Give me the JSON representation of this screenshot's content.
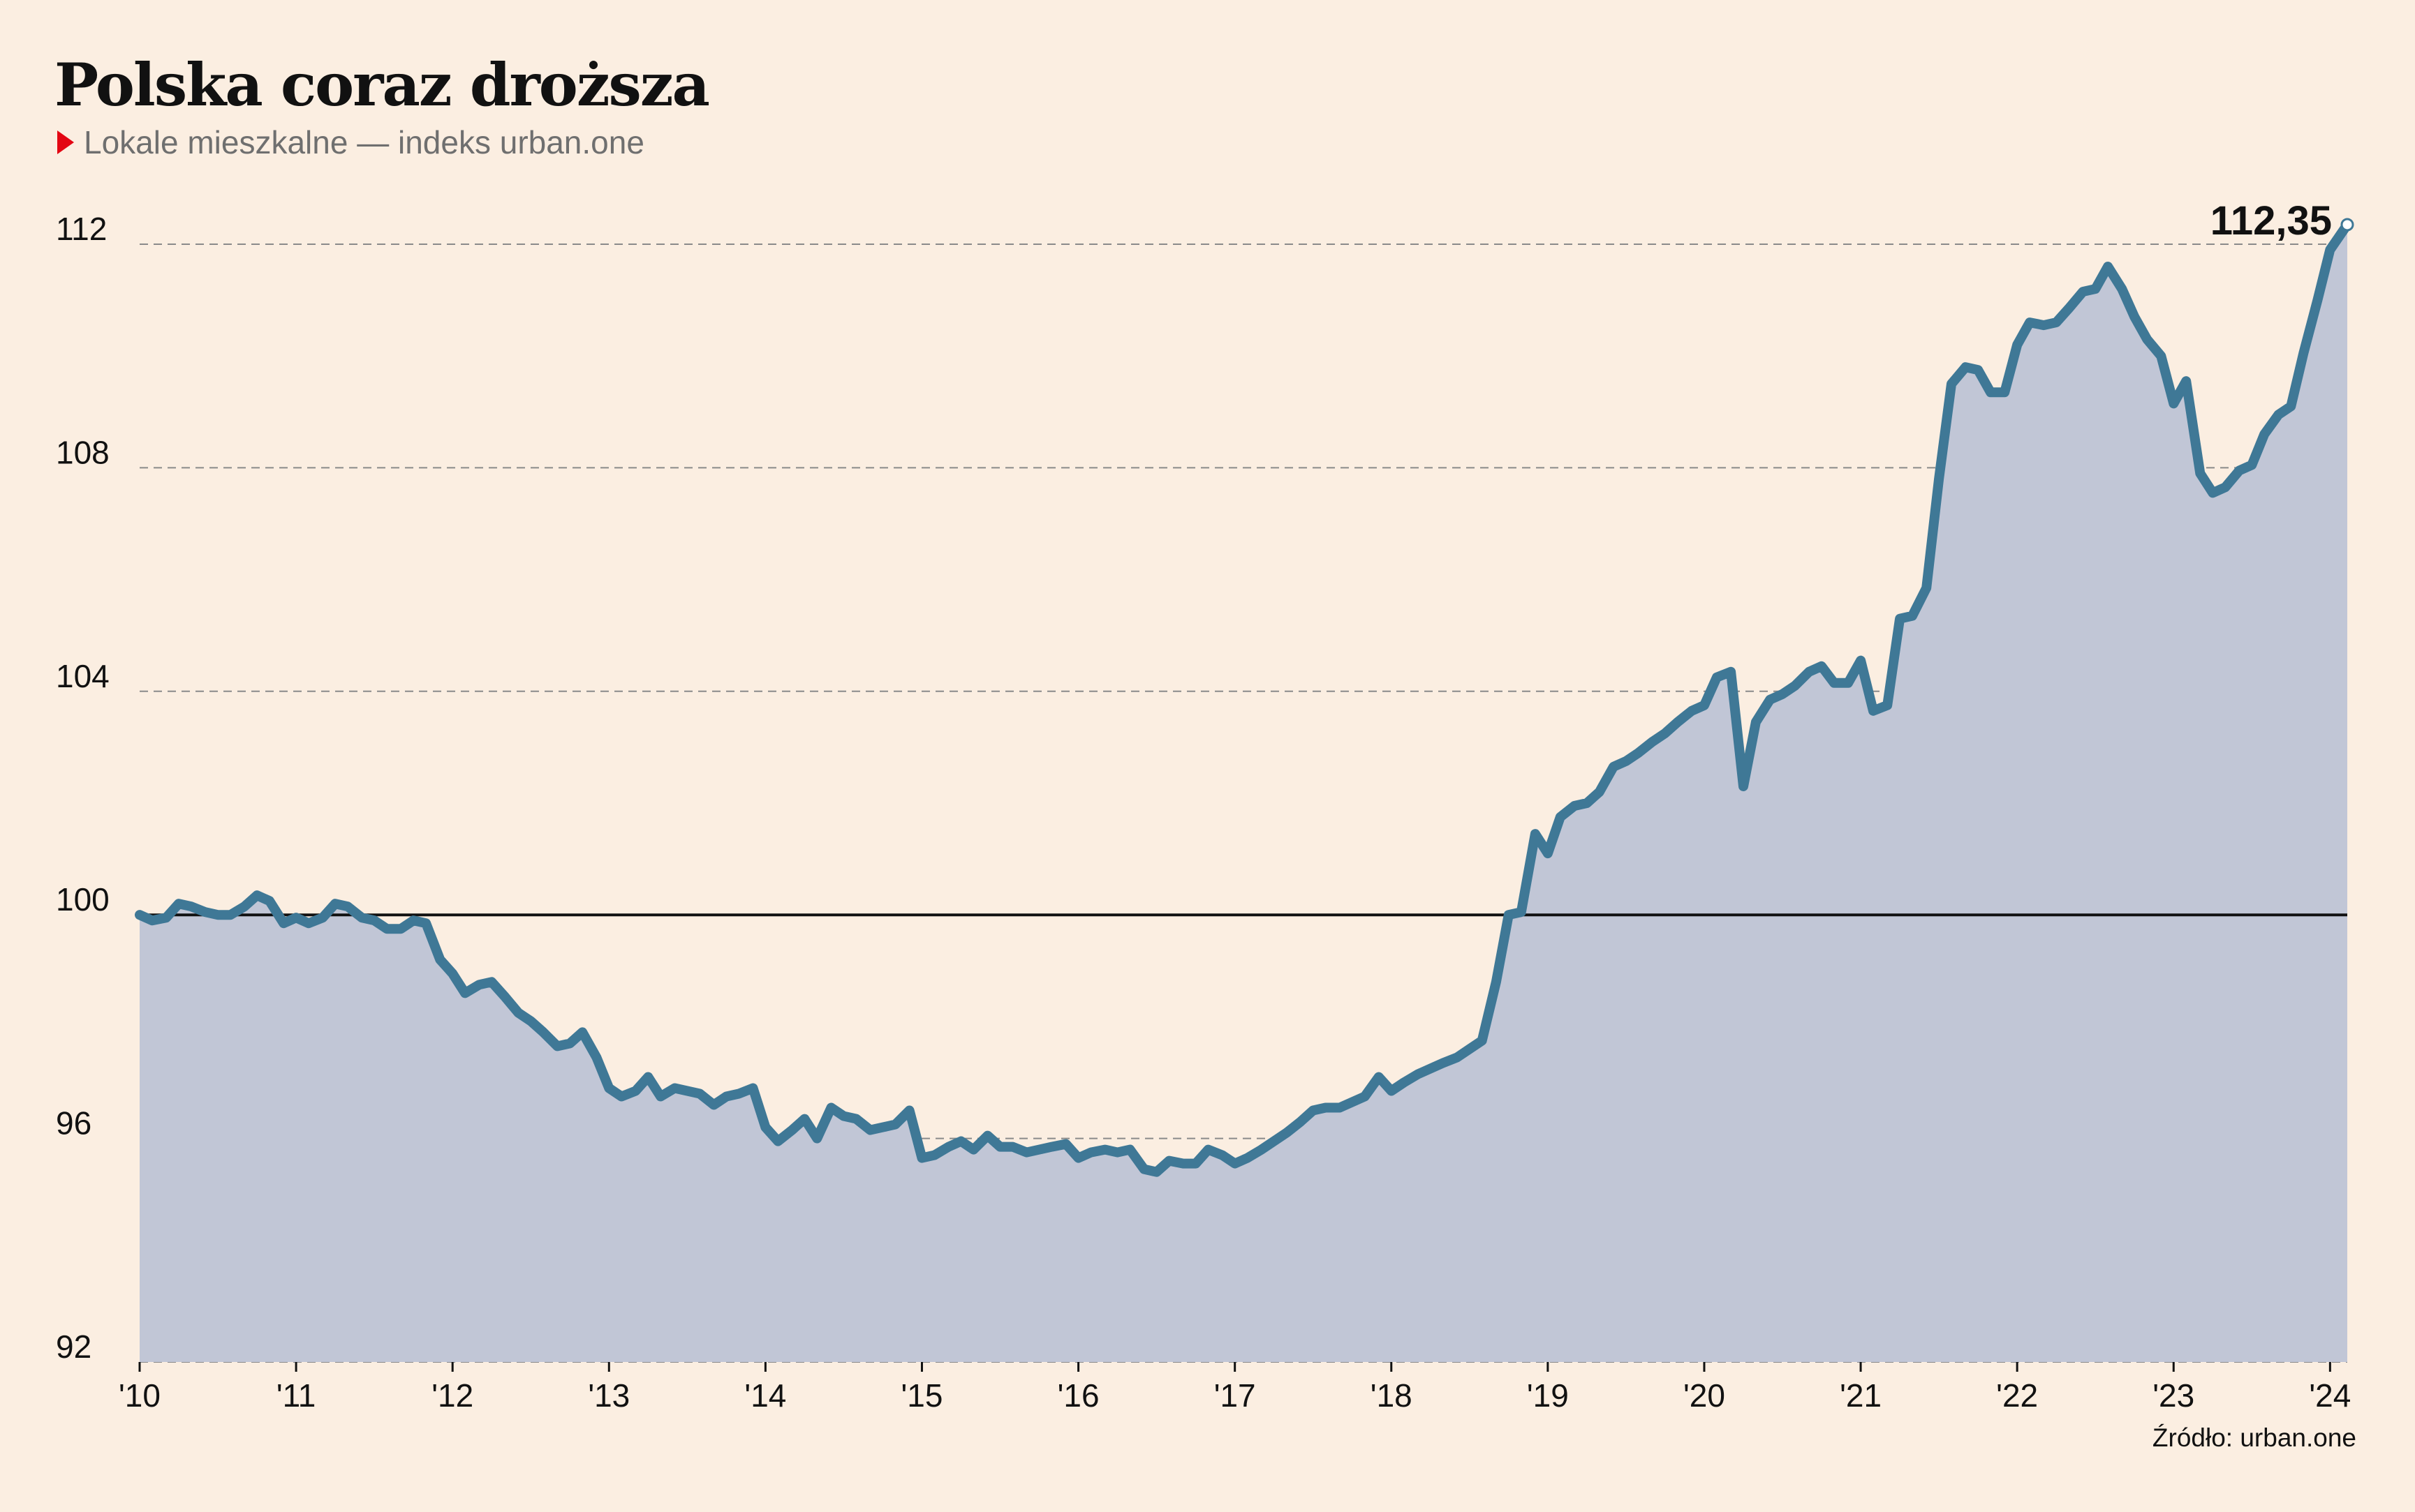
{
  "title": "Polska coraz droższa",
  "subtitle": "Lokale mieszkalne — indeks urban.one",
  "source": "Źródło: urban.one",
  "colors": {
    "background": "#fbeee1",
    "line": "#3f7896",
    "area": "#c1c6d6",
    "marker": "#e30613",
    "baseline": "#111111",
    "grid": "#8a8a8a"
  },
  "chart_data": {
    "type": "area",
    "x_unit": "year (decimal)",
    "xlim": [
      2010,
      2024.11
    ],
    "ylim": [
      92,
      113.2
    ],
    "baseline": 100,
    "y_ticks": [
      {
        "value": 92,
        "label": "92"
      },
      {
        "value": 96,
        "label": "96"
      },
      {
        "value": 100,
        "label": "100"
      },
      {
        "value": 104,
        "label": "104"
      },
      {
        "value": 108,
        "label": "108"
      },
      {
        "value": 112,
        "label": "112"
      }
    ],
    "x_ticks": [
      {
        "value": 2010,
        "label": "'10"
      },
      {
        "value": 2011,
        "label": "'11"
      },
      {
        "value": 2012,
        "label": "'12"
      },
      {
        "value": 2013,
        "label": "'13"
      },
      {
        "value": 2014,
        "label": "'14"
      },
      {
        "value": 2015,
        "label": "'15"
      },
      {
        "value": 2016,
        "label": "'16"
      },
      {
        "value": 2017,
        "label": "'17"
      },
      {
        "value": 2018,
        "label": "'18"
      },
      {
        "value": 2019,
        "label": "'19"
      },
      {
        "value": 2020,
        "label": "'20"
      },
      {
        "value": 2021,
        "label": "'21"
      },
      {
        "value": 2022,
        "label": "'22"
      },
      {
        "value": 2023,
        "label": "'23"
      },
      {
        "value": 2024,
        "label": "'24"
      }
    ],
    "grid": "horizontal dashed",
    "annotation": {
      "x": 2024.11,
      "y": 112.35,
      "label": "112,35"
    },
    "series": [
      {
        "points": [
          [
            2010.0,
            100.0
          ],
          [
            2010.08,
            99.9
          ],
          [
            2010.17,
            99.95
          ],
          [
            2010.25,
            100.2
          ],
          [
            2010.33,
            100.15
          ],
          [
            2010.42,
            100.05
          ],
          [
            2010.5,
            100.0
          ],
          [
            2010.58,
            100.0
          ],
          [
            2010.67,
            100.15
          ],
          [
            2010.75,
            100.35
          ],
          [
            2010.83,
            100.25
          ],
          [
            2010.92,
            99.85
          ],
          [
            2011.0,
            99.95
          ],
          [
            2011.08,
            99.85
          ],
          [
            2011.17,
            99.95
          ],
          [
            2011.25,
            100.2
          ],
          [
            2011.33,
            100.15
          ],
          [
            2011.42,
            99.95
          ],
          [
            2011.5,
            99.9
          ],
          [
            2011.58,
            99.75
          ],
          [
            2011.67,
            99.75
          ],
          [
            2011.75,
            99.9
          ],
          [
            2011.83,
            99.85
          ],
          [
            2011.92,
            99.2
          ],
          [
            2012.0,
            98.95
          ],
          [
            2012.08,
            98.6
          ],
          [
            2012.17,
            98.75
          ],
          [
            2012.25,
            98.8
          ],
          [
            2012.33,
            98.55
          ],
          [
            2012.42,
            98.25
          ],
          [
            2012.5,
            98.1
          ],
          [
            2012.58,
            97.9
          ],
          [
            2012.67,
            97.65
          ],
          [
            2012.75,
            97.7
          ],
          [
            2012.83,
            97.9
          ],
          [
            2012.92,
            97.45
          ],
          [
            2013.0,
            96.9
          ],
          [
            2013.08,
            96.75
          ],
          [
            2013.17,
            96.85
          ],
          [
            2013.25,
            97.1
          ],
          [
            2013.33,
            96.75
          ],
          [
            2013.42,
            96.9
          ],
          [
            2013.5,
            96.85
          ],
          [
            2013.58,
            96.8
          ],
          [
            2013.67,
            96.6
          ],
          [
            2013.75,
            96.75
          ],
          [
            2013.83,
            96.8
          ],
          [
            2013.92,
            96.9
          ],
          [
            2014.0,
            96.2
          ],
          [
            2014.08,
            95.95
          ],
          [
            2014.17,
            96.15
          ],
          [
            2014.25,
            96.35
          ],
          [
            2014.33,
            96.0
          ],
          [
            2014.42,
            96.55
          ],
          [
            2014.5,
            96.4
          ],
          [
            2014.58,
            96.35
          ],
          [
            2014.67,
            96.15
          ],
          [
            2014.75,
            96.2
          ],
          [
            2014.83,
            96.25
          ],
          [
            2014.92,
            96.5
          ],
          [
            2015.0,
            95.65
          ],
          [
            2015.08,
            95.7
          ],
          [
            2015.17,
            95.85
          ],
          [
            2015.25,
            95.95
          ],
          [
            2015.33,
            95.8
          ],
          [
            2015.42,
            96.05
          ],
          [
            2015.5,
            95.85
          ],
          [
            2015.58,
            95.85
          ],
          [
            2015.67,
            95.75
          ],
          [
            2015.75,
            95.8
          ],
          [
            2015.83,
            95.85
          ],
          [
            2015.92,
            95.9
          ],
          [
            2016.0,
            95.65
          ],
          [
            2016.08,
            95.75
          ],
          [
            2016.17,
            95.8
          ],
          [
            2016.25,
            95.75
          ],
          [
            2016.33,
            95.8
          ],
          [
            2016.42,
            95.45
          ],
          [
            2016.5,
            95.4
          ],
          [
            2016.58,
            95.6
          ],
          [
            2016.67,
            95.55
          ],
          [
            2016.75,
            95.55
          ],
          [
            2016.83,
            95.8
          ],
          [
            2016.92,
            95.7
          ],
          [
            2017.0,
            95.55
          ],
          [
            2017.08,
            95.65
          ],
          [
            2017.17,
            95.8
          ],
          [
            2017.25,
            95.95
          ],
          [
            2017.33,
            96.1
          ],
          [
            2017.42,
            96.3
          ],
          [
            2017.5,
            96.5
          ],
          [
            2017.58,
            96.55
          ],
          [
            2017.67,
            96.55
          ],
          [
            2017.75,
            96.65
          ],
          [
            2017.83,
            96.75
          ],
          [
            2017.92,
            97.1
          ],
          [
            2018.0,
            96.85
          ],
          [
            2018.08,
            97.0
          ],
          [
            2018.17,
            97.15
          ],
          [
            2018.25,
            97.25
          ],
          [
            2018.33,
            97.35
          ],
          [
            2018.42,
            97.45
          ],
          [
            2018.5,
            97.6
          ],
          [
            2018.58,
            97.75
          ],
          [
            2018.67,
            98.8
          ],
          [
            2018.75,
            100.0
          ],
          [
            2018.83,
            100.05
          ],
          [
            2018.92,
            101.45
          ],
          [
            2019.0,
            101.1
          ],
          [
            2019.08,
            101.75
          ],
          [
            2019.17,
            101.95
          ],
          [
            2019.25,
            102.0
          ],
          [
            2019.33,
            102.2
          ],
          [
            2019.42,
            102.65
          ],
          [
            2019.5,
            102.75
          ],
          [
            2019.58,
            102.9
          ],
          [
            2019.67,
            103.1
          ],
          [
            2019.75,
            103.25
          ],
          [
            2019.83,
            103.45
          ],
          [
            2019.92,
            103.65
          ],
          [
            2020.0,
            103.75
          ],
          [
            2020.08,
            104.25
          ],
          [
            2020.17,
            104.35
          ],
          [
            2020.25,
            102.3
          ],
          [
            2020.33,
            103.45
          ],
          [
            2020.42,
            103.85
          ],
          [
            2020.5,
            103.95
          ],
          [
            2020.58,
            104.1
          ],
          [
            2020.67,
            104.35
          ],
          [
            2020.75,
            104.45
          ],
          [
            2020.83,
            104.15
          ],
          [
            2020.92,
            104.15
          ],
          [
            2021.0,
            104.55
          ],
          [
            2021.08,
            103.65
          ],
          [
            2021.17,
            103.75
          ],
          [
            2021.25,
            105.3
          ],
          [
            2021.33,
            105.35
          ],
          [
            2021.42,
            105.85
          ],
          [
            2021.5,
            107.8
          ],
          [
            2021.58,
            109.5
          ],
          [
            2021.67,
            109.8
          ],
          [
            2021.75,
            109.75
          ],
          [
            2021.83,
            109.35
          ],
          [
            2021.92,
            109.35
          ],
          [
            2022.0,
            110.2
          ],
          [
            2022.08,
            110.6
          ],
          [
            2022.17,
            110.55
          ],
          [
            2022.25,
            110.6
          ],
          [
            2022.33,
            110.85
          ],
          [
            2022.42,
            111.15
          ],
          [
            2022.5,
            111.2
          ],
          [
            2022.58,
            111.6
          ],
          [
            2022.67,
            111.2
          ],
          [
            2022.75,
            110.7
          ],
          [
            2022.83,
            110.3
          ],
          [
            2022.92,
            110.0
          ],
          [
            2023.0,
            109.15
          ],
          [
            2023.08,
            109.55
          ],
          [
            2023.17,
            107.9
          ],
          [
            2023.25,
            107.55
          ],
          [
            2023.33,
            107.65
          ],
          [
            2023.42,
            107.95
          ],
          [
            2023.5,
            108.05
          ],
          [
            2023.58,
            108.6
          ],
          [
            2023.67,
            108.95
          ],
          [
            2023.75,
            109.1
          ],
          [
            2023.83,
            110.05
          ],
          [
            2023.92,
            111.0
          ],
          [
            2024.0,
            111.9
          ],
          [
            2024.11,
            112.35
          ]
        ]
      }
    ]
  }
}
